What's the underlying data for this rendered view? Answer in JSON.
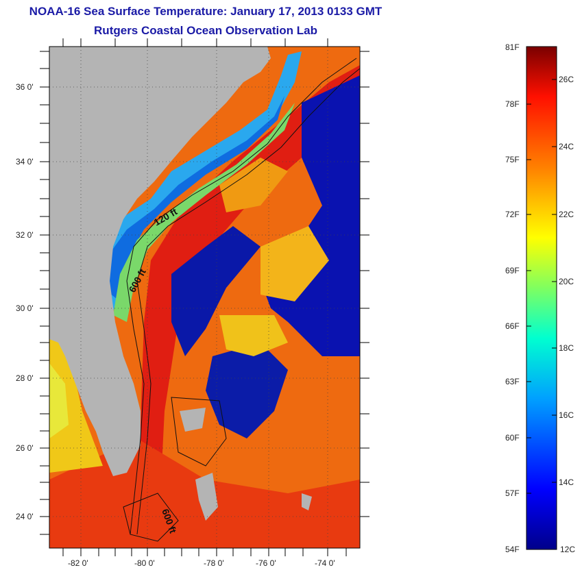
{
  "header": {
    "title": "NOAA-16 Sea Surface Temperature:  January 17, 2013 0133 GMT",
    "subtitle": "Rutgers Coastal Ocean Observation Lab"
  },
  "map": {
    "lat_labels": [
      "36 0'",
      "34 0'",
      "32 0'",
      "30 0'",
      "28 0'",
      "26 0'",
      "24 0'"
    ],
    "lon_labels": [
      "-82 0'",
      "-80 0'",
      "-78 0'",
      "-76 0'",
      "-74 0'"
    ],
    "contours": [
      "120 ft",
      "600 ft",
      "600 ft"
    ],
    "colors": {
      "land": "#b4b4b4",
      "warm": "#e8321e",
      "cold": "#0a1aa8"
    }
  },
  "colorbar": {
    "fahrenheit": [
      "81F",
      "78F",
      "75F",
      "72F",
      "69F",
      "66F",
      "63F",
      "60F",
      "57F",
      "54F"
    ],
    "celsius": [
      "26C",
      "24C",
      "22C",
      "20C",
      "18C",
      "16C",
      "14C",
      "12C"
    ]
  }
}
